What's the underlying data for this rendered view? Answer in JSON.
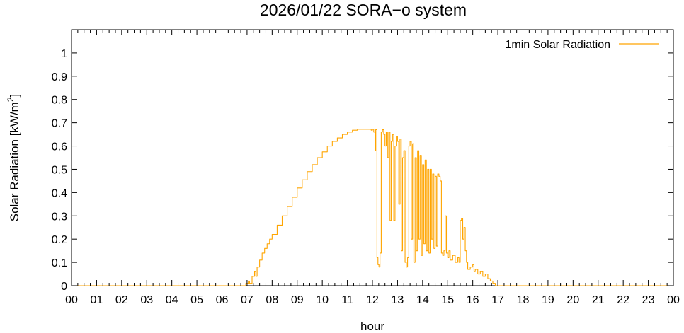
{
  "chart_data": {
    "type": "line",
    "title": "2026/01/22 SORA−o system",
    "xlabel": "hour",
    "ylabel": "Solar Radiation [kW/m",
    "ylabel_sup": "2",
    "ylabel_close": "]",
    "xlim": [
      0,
      24
    ],
    "ylim": [
      0,
      1.1
    ],
    "x_ticks": [
      0,
      1,
      2,
      3,
      4,
      5,
      6,
      7,
      8,
      9,
      10,
      11,
      12,
      13,
      14,
      15,
      16,
      17,
      18,
      19,
      20,
      21,
      22,
      23,
      24
    ],
    "x_tick_labels": [
      "00",
      "01",
      "02",
      "03",
      "04",
      "05",
      "06",
      "07",
      "08",
      "09",
      "10",
      "11",
      "12",
      "13",
      "14",
      "15",
      "16",
      "17",
      "18",
      "19",
      "20",
      "21",
      "22",
      "23",
      "00"
    ],
    "y_ticks": [
      0,
      0.1,
      0.2,
      0.3,
      0.4,
      0.5,
      0.6,
      0.7,
      0.8,
      0.9,
      1
    ],
    "y_tick_labels": [
      "0",
      "0.1",
      "0.2",
      "0.3",
      "0.4",
      "0.5",
      "0.6",
      "0.7",
      "0.8",
      "0.9",
      "1"
    ],
    "grid": false,
    "legend_position": "top-right",
    "series": [
      {
        "name": "1min Solar Radiation",
        "color": "#ffa500",
        "points": [
          [
            0,
            0
          ],
          [
            6.85,
            0
          ],
          [
            6.95,
            0.01
          ],
          [
            7.05,
            0.02
          ],
          [
            7.1,
            0.01
          ],
          [
            7.2,
            0.04
          ],
          [
            7.3,
            0.06
          ],
          [
            7.35,
            0.04
          ],
          [
            7.4,
            0.08
          ],
          [
            7.5,
            0.11
          ],
          [
            7.6,
            0.14
          ],
          [
            7.7,
            0.16
          ],
          [
            7.8,
            0.18
          ],
          [
            7.9,
            0.2
          ],
          [
            8.0,
            0.22
          ],
          [
            8.2,
            0.26
          ],
          [
            8.4,
            0.3
          ],
          [
            8.6,
            0.34
          ],
          [
            8.8,
            0.38
          ],
          [
            9.0,
            0.42
          ],
          [
            9.2,
            0.455
          ],
          [
            9.4,
            0.49
          ],
          [
            9.6,
            0.52
          ],
          [
            9.8,
            0.55
          ],
          [
            10.0,
            0.575
          ],
          [
            10.2,
            0.6
          ],
          [
            10.4,
            0.62
          ],
          [
            10.6,
            0.635
          ],
          [
            10.8,
            0.65
          ],
          [
            11.0,
            0.66
          ],
          [
            11.2,
            0.668
          ],
          [
            11.4,
            0.672
          ],
          [
            11.6,
            0.672
          ],
          [
            11.8,
            0.672
          ],
          [
            11.95,
            0.668
          ],
          [
            12.0,
            0.672
          ],
          [
            12.05,
            0.66
          ],
          [
            12.1,
            0.58
          ],
          [
            12.13,
            0.67
          ],
          [
            12.18,
            0.12
          ],
          [
            12.22,
            0.09
          ],
          [
            12.26,
            0.08
          ],
          [
            12.3,
            0.14
          ],
          [
            12.35,
            0.66
          ],
          [
            12.4,
            0.67
          ],
          [
            12.45,
            0.65
          ],
          [
            12.5,
            0.6
          ],
          [
            12.55,
            0.66
          ],
          [
            12.6,
            0.55
          ],
          [
            12.65,
            0.66
          ],
          [
            12.7,
            0.28
          ],
          [
            12.75,
            0.62
          ],
          [
            12.8,
            0.65
          ],
          [
            12.85,
            0.28
          ],
          [
            12.9,
            0.6
          ],
          [
            12.95,
            0.64
          ],
          [
            13.0,
            0.62
          ],
          [
            13.05,
            0.35
          ],
          [
            13.1,
            0.63
          ],
          [
            13.15,
            0.15
          ],
          [
            13.2,
            0.55
          ],
          [
            13.25,
            0.58
          ],
          [
            13.3,
            0.1
          ],
          [
            13.35,
            0.08
          ],
          [
            13.4,
            0.12
          ],
          [
            13.45,
            0.6
          ],
          [
            13.5,
            0.62
          ],
          [
            13.55,
            0.2
          ],
          [
            13.6,
            0.61
          ],
          [
            13.65,
            0.1
          ],
          [
            13.7,
            0.55
          ],
          [
            13.75,
            0.15
          ],
          [
            13.8,
            0.58
          ],
          [
            13.85,
            0.2
          ],
          [
            13.9,
            0.56
          ],
          [
            13.95,
            0.13
          ],
          [
            14.0,
            0.52
          ],
          [
            14.05,
            0.18
          ],
          [
            14.1,
            0.54
          ],
          [
            14.15,
            0.15
          ],
          [
            14.2,
            0.5
          ],
          [
            14.25,
            0.14
          ],
          [
            14.3,
            0.5
          ],
          [
            14.35,
            0.2
          ],
          [
            14.4,
            0.48
          ],
          [
            14.45,
            0.16
          ],
          [
            14.5,
            0.47
          ],
          [
            14.55,
            0.17
          ],
          [
            14.6,
            0.48
          ],
          [
            14.65,
            0.47
          ],
          [
            14.7,
            0.45
          ],
          [
            14.75,
            0.14
          ],
          [
            14.8,
            0.13
          ],
          [
            14.85,
            0.15
          ],
          [
            14.9,
            0.3
          ],
          [
            14.95,
            0.14
          ],
          [
            15.0,
            0.12
          ],
          [
            15.05,
            0.15
          ],
          [
            15.1,
            0.11
          ],
          [
            15.2,
            0.13
          ],
          [
            15.3,
            0.1
          ],
          [
            15.4,
            0.12
          ],
          [
            15.45,
            0.1
          ],
          [
            15.5,
            0.28
          ],
          [
            15.55,
            0.29
          ],
          [
            15.6,
            0.2
          ],
          [
            15.65,
            0.25
          ],
          [
            15.7,
            0.15
          ],
          [
            15.75,
            0.1
          ],
          [
            15.8,
            0.07
          ],
          [
            15.9,
            0.08
          ],
          [
            16.0,
            0.09
          ],
          [
            16.05,
            0.06
          ],
          [
            16.1,
            0.07
          ],
          [
            16.2,
            0.05
          ],
          [
            16.3,
            0.06
          ],
          [
            16.4,
            0.04
          ],
          [
            16.5,
            0.05
          ],
          [
            16.6,
            0.03
          ],
          [
            16.7,
            0.02
          ],
          [
            16.8,
            0.01
          ],
          [
            16.9,
            0.0
          ],
          [
            24,
            0
          ]
        ]
      }
    ]
  }
}
